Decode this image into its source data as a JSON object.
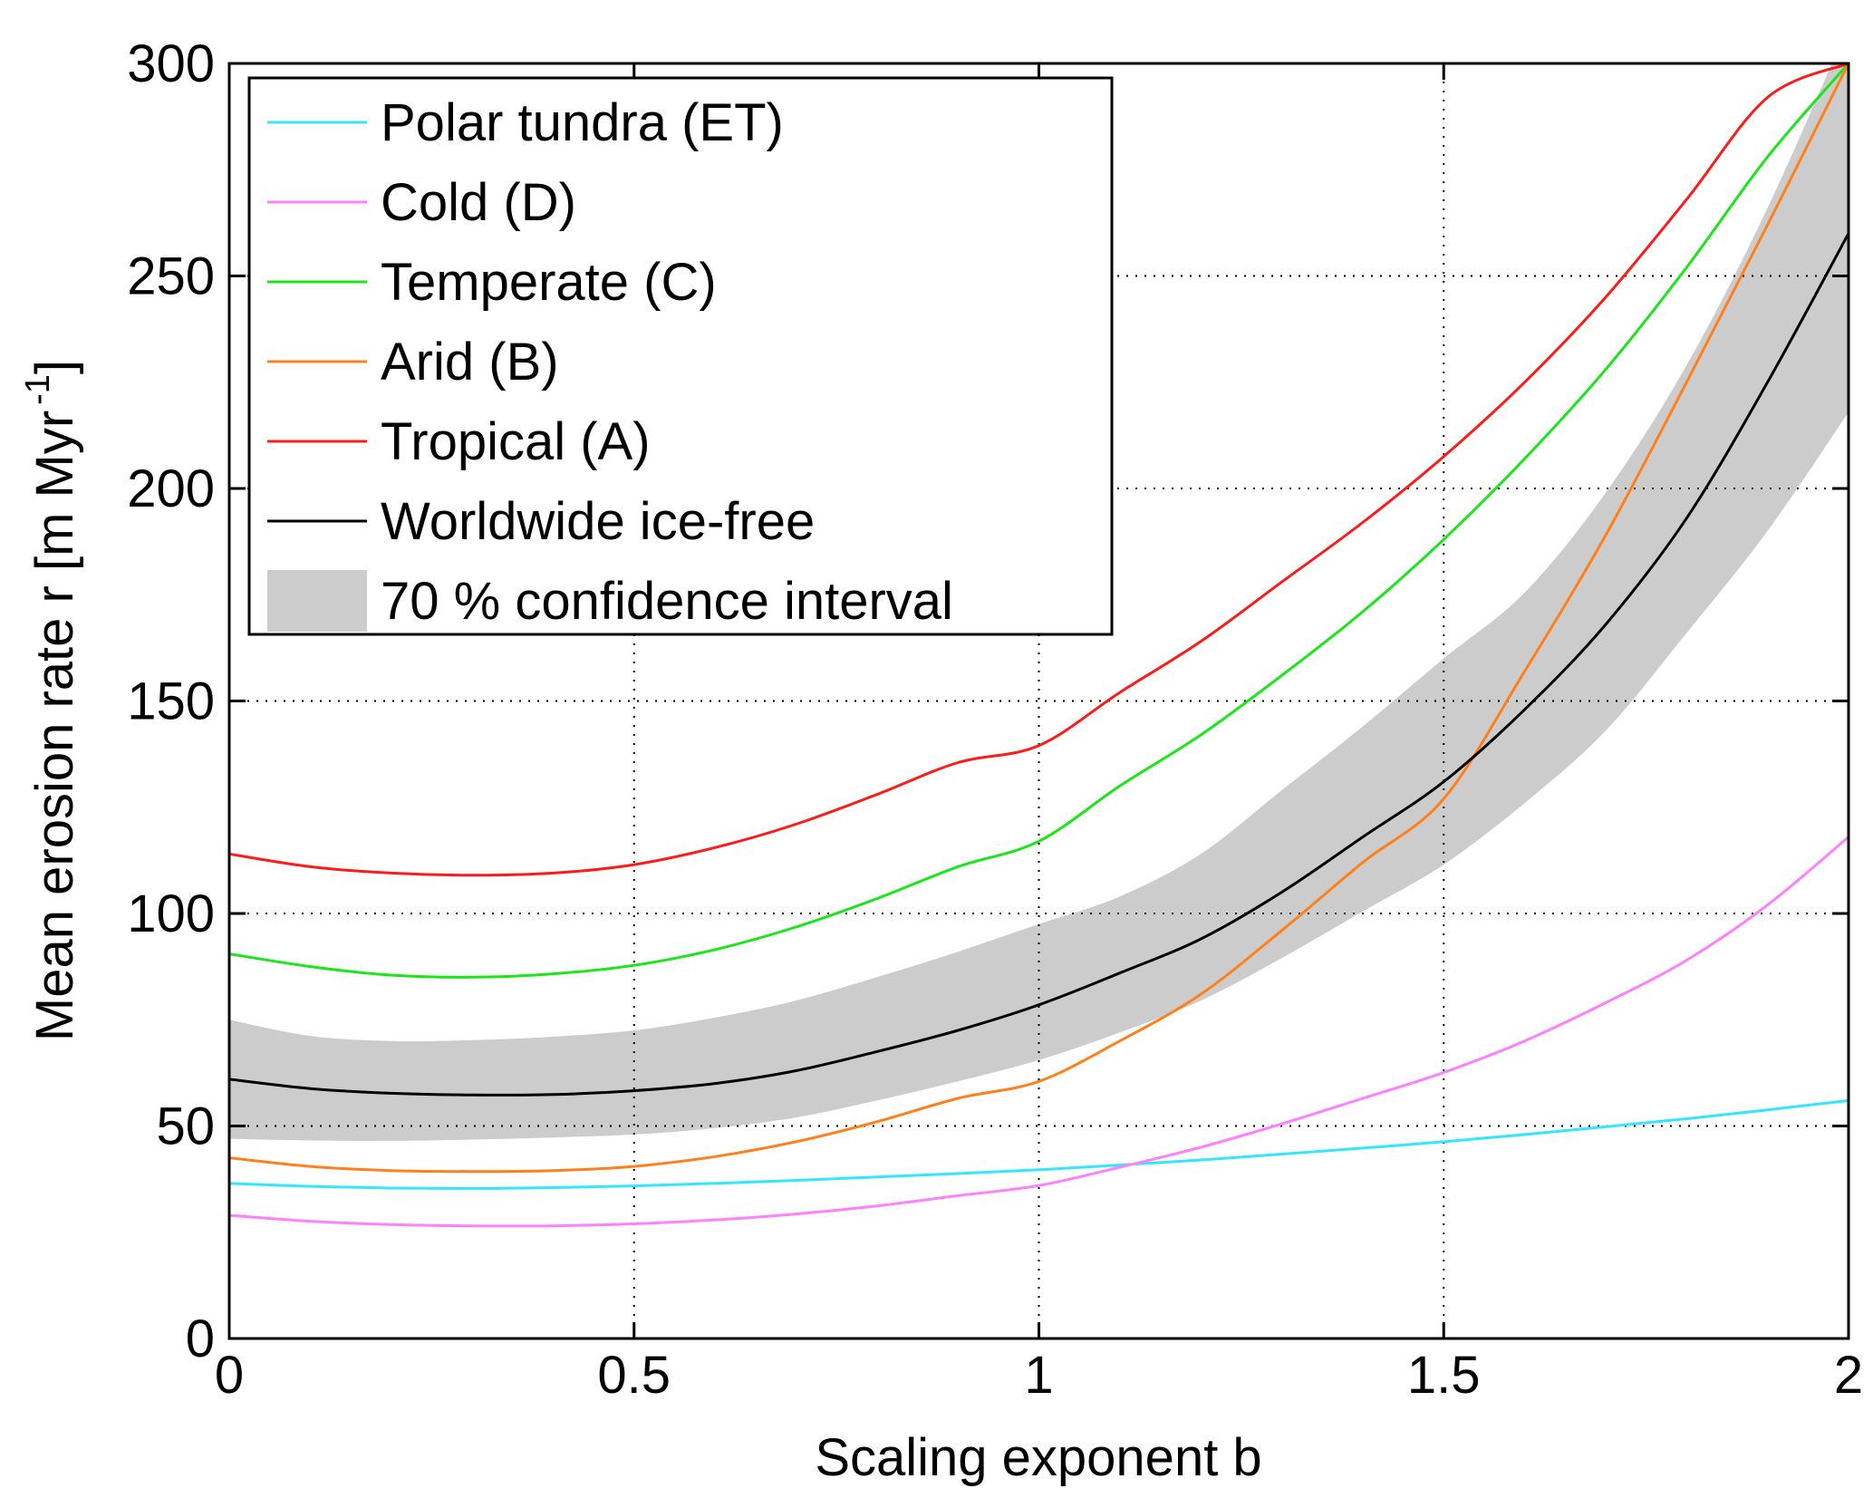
{
  "chart_data": {
    "type": "line",
    "xlabel": "Scaling exponent b",
    "ylabel": "Mean erosion rate r [m Myr",
    "ylabel_sup": "-1",
    "ylabel_close": "]",
    "xlim": [
      0,
      2
    ],
    "ylim": [
      0,
      300
    ],
    "xticks": [
      0,
      0.5,
      1,
      1.5,
      2
    ],
    "xtick_labels": [
      "0",
      "0.5",
      "1",
      "1.5",
      "2"
    ],
    "yticks": [
      0,
      50,
      100,
      150,
      200,
      250,
      300
    ],
    "ytick_labels": [
      "0",
      "50",
      "100",
      "150",
      "200",
      "250",
      "300"
    ],
    "grid": "dotted",
    "legend_position": "top-left",
    "x": [
      0,
      0.1,
      0.2,
      0.3,
      0.4,
      0.5,
      0.6,
      0.7,
      0.8,
      0.9,
      1.0,
      1.1,
      1.2,
      1.3,
      1.4,
      1.5,
      1.6,
      1.7,
      1.8,
      1.9,
      2.0
    ],
    "series": [
      {
        "name": "Polar tundra (ET)",
        "color": "#33e6ff",
        "values": [
          36.5,
          35.8,
          35.4,
          35.3,
          35.5,
          35.9,
          36.5,
          37.2,
          38.0,
          38.8,
          39.7,
          40.8,
          42.0,
          43.4,
          44.8,
          46.3,
          48.0,
          49.8,
          51.7,
          53.8,
          56.0
        ]
      },
      {
        "name": "Cold (D)",
        "color": "#ff80ff",
        "values": [
          29.0,
          27.6,
          26.8,
          26.5,
          26.5,
          27.0,
          27.9,
          29.3,
          31.2,
          33.6,
          36.0,
          40.3,
          45.0,
          50.5,
          56.5,
          62.6,
          70.0,
          79.0,
          89.0,
          102.0,
          118.0
        ]
      },
      {
        "name": "Temperate (C)",
        "color": "#1ae61a",
        "values": [
          90.5,
          87.5,
          85.5,
          85.0,
          85.8,
          87.8,
          91.5,
          96.8,
          103.5,
          111.0,
          117.0,
          130.0,
          142.0,
          156.0,
          171.0,
          188.0,
          207.0,
          228.0,
          252.0,
          278.0,
          300.0
        ]
      },
      {
        "name": "Arid (B)",
        "color": "#ff801a",
        "values": [
          42.5,
          40.5,
          39.5,
          39.3,
          39.5,
          40.5,
          42.8,
          46.3,
          51.0,
          56.5,
          60.5,
          70.0,
          81.0,
          96.0,
          112.0,
          127.0,
          157.0,
          189.0,
          225.0,
          262.0,
          300.0
        ]
      },
      {
        "name": "Tropical (A)",
        "color": "#ff1a1a",
        "values": [
          114.0,
          111.0,
          109.5,
          109.0,
          109.5,
          111.5,
          115.5,
          121.0,
          128.0,
          135.5,
          139.5,
          152.0,
          164.0,
          178.0,
          192.0,
          207.5,
          225.0,
          245.0,
          268.0,
          292.0,
          300.0
        ]
      },
      {
        "name": "Worldwide ice-free",
        "color": "#000000",
        "values": [
          61.0,
          58.8,
          57.7,
          57.3,
          57.4,
          58.3,
          60.0,
          63.0,
          67.5,
          72.5,
          78.5,
          86.0,
          94.0,
          105.0,
          118.0,
          131.0,
          148.0,
          168.0,
          193.0,
          225.0,
          260.0
        ]
      }
    ],
    "band": {
      "name": "70 % confidence interval",
      "color": "#cccccc",
      "lower": [
        47.0,
        46.6,
        46.5,
        46.8,
        47.3,
        48.0,
        49.5,
        52.0,
        56.0,
        60.5,
        65.5,
        72.0,
        79.5,
        89.5,
        100.5,
        111.5,
        126.0,
        143.0,
        166.0,
        190.0,
        218.0
      ],
      "upper": [
        75.0,
        71.2,
        70.0,
        70.2,
        71.0,
        72.5,
        75.5,
        79.5,
        85.0,
        91.0,
        97.5,
        104.0,
        114.0,
        129.0,
        144.0,
        160.0,
        175.5,
        199.0,
        229.0,
        266.0,
        309.0
      ]
    }
  }
}
